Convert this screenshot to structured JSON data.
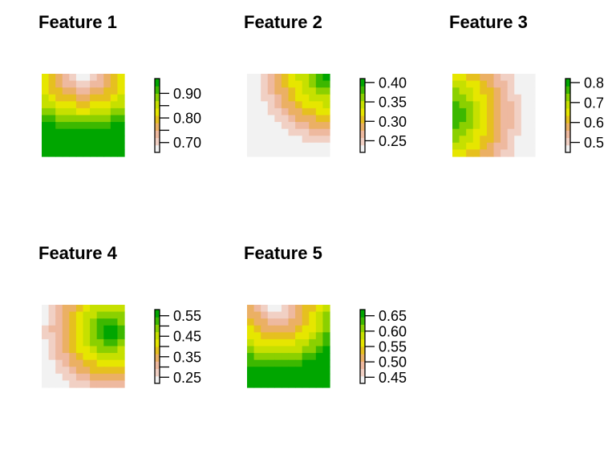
{
  "chart_data": [
    {
      "type": "heatmap",
      "title": "Feature 1",
      "zlim": [
        0.66,
        0.96
      ],
      "colorbar_ticks": [
        0.7,
        0.75,
        0.8,
        0.85,
        0.9
      ],
      "colorbar_labels": [
        "0.70",
        "",
        "0.80",
        "",
        "0.90"
      ],
      "pattern": "top"
    },
    {
      "type": "heatmap",
      "title": "Feature 2",
      "zlim": [
        0.22,
        0.41
      ],
      "colorbar_ticks": [
        0.25,
        0.3,
        0.35,
        0.4
      ],
      "colorbar_labels": [
        "0.25",
        "0.30",
        "0.35",
        "0.40"
      ],
      "pattern": "topright"
    },
    {
      "type": "heatmap",
      "title": "Feature 3",
      "zlim": [
        0.45,
        0.82
      ],
      "colorbar_ticks": [
        0.5,
        0.6,
        0.7,
        0.8
      ],
      "colorbar_labels": [
        "0.5",
        "0.6",
        "0.7",
        "0.8"
      ],
      "pattern": "leftcenter"
    },
    {
      "type": "heatmap",
      "title": "Feature 4",
      "zlim": [
        0.22,
        0.58
      ],
      "colorbar_ticks": [
        0.25,
        0.3,
        0.35,
        0.4,
        0.45,
        0.5,
        0.55
      ],
      "colorbar_labels": [
        "0.25",
        "",
        "0.35",
        "",
        "0.45",
        "",
        "0.55"
      ],
      "pattern": "rightupper"
    },
    {
      "type": "heatmap",
      "title": "Feature 5",
      "zlim": [
        0.43,
        0.67
      ],
      "colorbar_ticks": [
        0.45,
        0.5,
        0.55,
        0.6,
        0.65
      ],
      "colorbar_labels": [
        "0.45",
        "0.50",
        "0.55",
        "0.60",
        "0.65"
      ],
      "pattern": "topleft"
    }
  ],
  "palette": [
    "#F2F2F2",
    "#F1D0C4",
    "#EEB99F",
    "#EBB064",
    "#E6C01F",
    "#E6E600",
    "#C6E000",
    "#8BD000",
    "#3CB800",
    "#00A600"
  ]
}
